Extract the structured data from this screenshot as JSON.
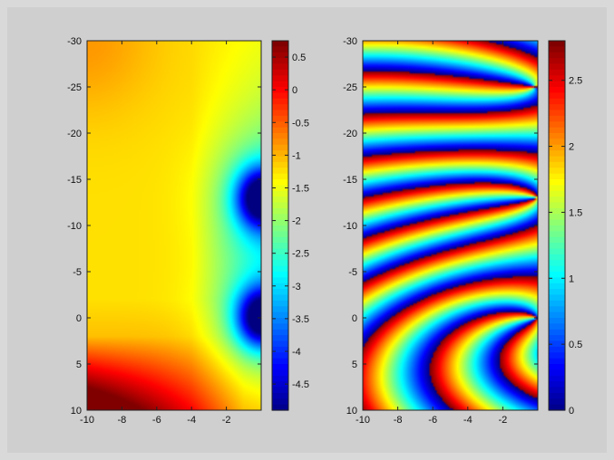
{
  "figure": {
    "background": "#d9d9d9",
    "panel_background": "#cfcfcf"
  },
  "chart_data": [
    {
      "type": "heatmap",
      "title": "",
      "xlabel": "",
      "ylabel": "",
      "x_ticks": [
        "-10",
        "-8",
        "-6",
        "-4",
        "-2"
      ],
      "y_ticks": [
        "-30",
        "-25",
        "-20",
        "-15",
        "-10",
        "-5",
        "0",
        "5",
        "10"
      ],
      "xlim": [
        -10,
        0
      ],
      "ylim": [
        -30,
        10
      ],
      "y_reversed": true,
      "colormap": "jet",
      "colorbar": {
        "range": [
          -4.9,
          0.75
        ],
        "ticks": [
          "0.5",
          "0",
          "-0.5",
          "-1",
          "-1.5",
          "-2",
          "-2.5",
          "-3",
          "-3.5",
          "-4",
          "-4.5"
        ]
      },
      "features": {
        "background_value": -1.2,
        "minima": [
          {
            "x": 0,
            "y": -13,
            "value": -4.9
          },
          {
            "x": 0,
            "y": 0,
            "value": -4.9
          }
        ],
        "maximum_corner": {
          "x": -10,
          "y": 10,
          "value": 0.75
        }
      }
    },
    {
      "type": "heatmap",
      "title": "",
      "xlabel": "",
      "ylabel": "",
      "x_ticks": [
        "-10",
        "-8",
        "-6",
        "-4",
        "-2"
      ],
      "y_ticks": [
        "-30",
        "-25",
        "-20",
        "-15",
        "-10",
        "-5",
        "0",
        "5",
        "10"
      ],
      "xlim": [
        -10,
        0
      ],
      "ylim": [
        -30,
        10
      ],
      "y_reversed": true,
      "colormap": "jet",
      "description_value": "wrapped phase",
      "colorbar": {
        "range": [
          0,
          2.8
        ],
        "ticks": [
          "2.5",
          "2",
          "1.5",
          "1",
          "0.5",
          "0"
        ]
      },
      "features": {
        "singularities": [
          {
            "x": -0.2,
            "y": -25
          },
          {
            "x": 0,
            "y": -13
          },
          {
            "x": 0,
            "y": 0
          }
        ]
      }
    }
  ]
}
